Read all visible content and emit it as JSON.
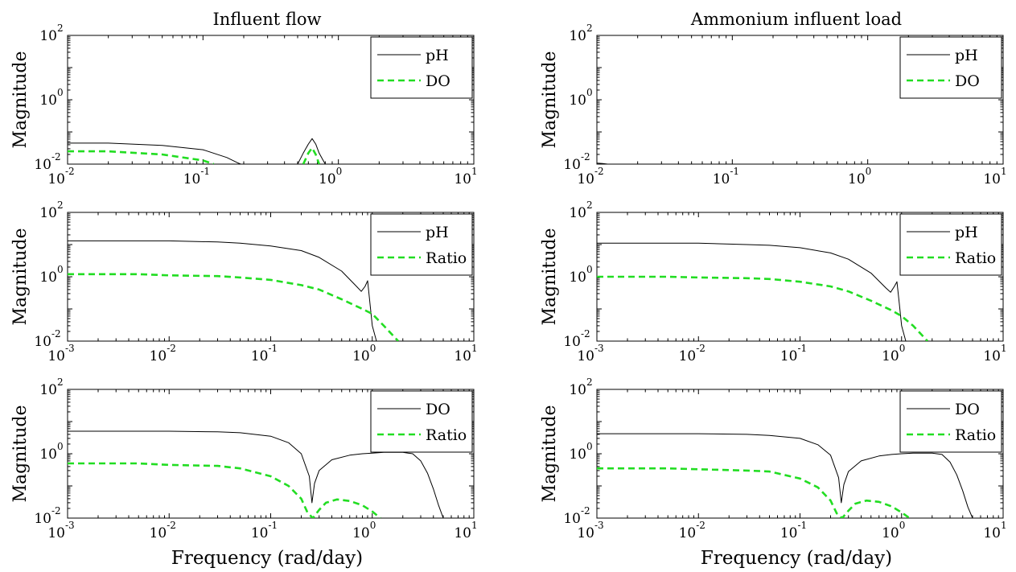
{
  "figure": {
    "columns": [
      {
        "title": "Influent flow"
      },
      {
        "title": "Ammonium influent load"
      }
    ],
    "xlabel": "Frequency (rad/day)"
  },
  "chart_data": [
    {
      "type": "line",
      "row": 0,
      "col": 0,
      "title": "Influent flow",
      "ylabel": "Magnitude",
      "xlabel": "",
      "xscale": "log",
      "yscale": "log",
      "xlim": [
        0.01,
        10
      ],
      "ylim": [
        0.01,
        100
      ],
      "xticks": [
        {
          "base": "10",
          "exp": "-2"
        },
        {
          "base": "10",
          "exp": "-1"
        },
        {
          "base": "10",
          "exp": "0"
        },
        {
          "base": "10",
          "exp": "1"
        }
      ],
      "yticks": [
        {
          "base": "10",
          "exp": "-2"
        },
        {
          "base": "10",
          "exp": "0"
        },
        {
          "base": "10",
          "exp": "2"
        }
      ],
      "legend_position": "top-right",
      "series": [
        {
          "name": "pH",
          "style": "solid",
          "color": "#000000",
          "x": [
            0.01,
            0.02,
            0.05,
            0.1,
            0.15,
            0.18,
            0.19
          ],
          "y": [
            0.045,
            0.045,
            0.038,
            0.028,
            0.016,
            0.011,
            0.01
          ]
        },
        {
          "name": "pH",
          "style": "solid",
          "color": "#000000",
          "legend": false,
          "x": [
            0.5,
            0.55,
            0.6,
            0.64,
            0.68,
            0.72,
            0.78,
            0.8
          ],
          "y": [
            0.01,
            0.022,
            0.042,
            0.062,
            0.042,
            0.022,
            0.012,
            0.01
          ]
        },
        {
          "name": "DO",
          "style": "dashed",
          "color": "#22dd22",
          "x": [
            0.01,
            0.02,
            0.05,
            0.1,
            0.12
          ],
          "y": [
            0.025,
            0.025,
            0.02,
            0.013,
            0.01
          ]
        },
        {
          "name": "DO",
          "style": "dashed",
          "color": "#22dd22",
          "legend": false,
          "x": [
            0.55,
            0.6,
            0.64,
            0.68,
            0.72
          ],
          "y": [
            0.01,
            0.022,
            0.032,
            0.02,
            0.01
          ]
        }
      ]
    },
    {
      "type": "line",
      "row": 0,
      "col": 1,
      "title": "Ammonium influent load",
      "ylabel": "Magnitude",
      "xlabel": "",
      "xscale": "log",
      "yscale": "log",
      "xlim": [
        0.01,
        10
      ],
      "ylim": [
        0.01,
        100
      ],
      "xticks": [
        {
          "base": "10",
          "exp": "-2"
        },
        {
          "base": "10",
          "exp": "-1"
        },
        {
          "base": "10",
          "exp": "0"
        },
        {
          "base": "10",
          "exp": "1"
        }
      ],
      "yticks": [
        {
          "base": "10",
          "exp": "-2"
        },
        {
          "base": "10",
          "exp": "0"
        },
        {
          "base": "10",
          "exp": "2"
        }
      ],
      "legend_position": "top-right",
      "series": [
        {
          "name": "pH",
          "style": "solid",
          "color": "#000000",
          "x": [
            0.01,
            0.011,
            0.012
          ],
          "y": [
            0.0108,
            0.0105,
            0.01
          ]
        },
        {
          "name": "DO",
          "style": "dashed",
          "color": "#22dd22",
          "x": [],
          "y": []
        }
      ]
    },
    {
      "type": "line",
      "row": 1,
      "col": 0,
      "title": "",
      "ylabel": "Magnitude",
      "xlabel": "",
      "xscale": "log",
      "yscale": "log",
      "xlim": [
        0.001,
        10
      ],
      "ylim": [
        0.01,
        100
      ],
      "xticks": [
        {
          "base": "10",
          "exp": "-3"
        },
        {
          "base": "10",
          "exp": "-2"
        },
        {
          "base": "10",
          "exp": "-1"
        },
        {
          "base": "10",
          "exp": "0"
        },
        {
          "base": "10",
          "exp": "1"
        }
      ],
      "yticks": [
        {
          "base": "10",
          "exp": "-2"
        },
        {
          "base": "10",
          "exp": "0"
        },
        {
          "base": "10",
          "exp": "2"
        }
      ],
      "legend_position": "top-right",
      "series": [
        {
          "name": "pH",
          "style": "solid",
          "color": "#000000",
          "x": [
            0.001,
            0.01,
            0.03,
            0.05,
            0.1,
            0.2,
            0.3,
            0.5,
            0.7,
            0.78,
            0.85,
            0.9,
            0.95,
            1.0,
            1.1
          ],
          "y": [
            13,
            13,
            12,
            11,
            9,
            6.5,
            4,
            1.5,
            0.5,
            0.35,
            0.5,
            0.75,
            0.15,
            0.03,
            0.01
          ]
        },
        {
          "name": "Ratio",
          "style": "dashed",
          "color": "#22dd22",
          "x": [
            0.001,
            0.005,
            0.01,
            0.03,
            0.05,
            0.1,
            0.2,
            0.3,
            0.5,
            0.8,
            1.0,
            1.3,
            1.6,
            1.8
          ],
          "y": [
            1.2,
            1.2,
            1.1,
            1.05,
            0.95,
            0.8,
            0.55,
            0.4,
            0.2,
            0.1,
            0.07,
            0.03,
            0.015,
            0.01
          ]
        }
      ]
    },
    {
      "type": "line",
      "row": 1,
      "col": 1,
      "title": "",
      "ylabel": "Magnitude",
      "xlabel": "",
      "xscale": "log",
      "yscale": "log",
      "xlim": [
        0.001,
        10
      ],
      "ylim": [
        0.01,
        100
      ],
      "xticks": [
        {
          "base": "10",
          "exp": "-3"
        },
        {
          "base": "10",
          "exp": "-2"
        },
        {
          "base": "10",
          "exp": "-1"
        },
        {
          "base": "10",
          "exp": "0"
        },
        {
          "base": "10",
          "exp": "1"
        }
      ],
      "yticks": [
        {
          "base": "10",
          "exp": "-2"
        },
        {
          "base": "10",
          "exp": "0"
        },
        {
          "base": "10",
          "exp": "2"
        }
      ],
      "legend_position": "top-right",
      "series": [
        {
          "name": "pH",
          "style": "solid",
          "color": "#000000",
          "x": [
            0.001,
            0.01,
            0.03,
            0.05,
            0.1,
            0.2,
            0.3,
            0.5,
            0.7,
            0.78,
            0.85,
            0.9,
            0.95,
            1.0,
            1.1
          ],
          "y": [
            11,
            11,
            10,
            9.5,
            8,
            5.5,
            3.5,
            1.3,
            0.45,
            0.33,
            0.5,
            0.7,
            0.15,
            0.03,
            0.01
          ]
        },
        {
          "name": "Ratio",
          "style": "dashed",
          "color": "#22dd22",
          "x": [
            0.001,
            0.005,
            0.01,
            0.03,
            0.05,
            0.1,
            0.2,
            0.3,
            0.5,
            0.8,
            1.0,
            1.3,
            1.6,
            1.8
          ],
          "y": [
            1.0,
            1.0,
            0.95,
            0.9,
            0.85,
            0.7,
            0.5,
            0.35,
            0.18,
            0.09,
            0.06,
            0.03,
            0.015,
            0.01
          ]
        }
      ]
    },
    {
      "type": "line",
      "row": 2,
      "col": 0,
      "title": "",
      "ylabel": "Magnitude",
      "xlabel": "Frequency (rad/day)",
      "xscale": "log",
      "yscale": "log",
      "xlim": [
        0.001,
        10
      ],
      "ylim": [
        0.01,
        100
      ],
      "xticks": [
        {
          "base": "10",
          "exp": "-3"
        },
        {
          "base": "10",
          "exp": "-2"
        },
        {
          "base": "10",
          "exp": "-1"
        },
        {
          "base": "10",
          "exp": "0"
        },
        {
          "base": "10",
          "exp": "1"
        }
      ],
      "yticks": [
        {
          "base": "10",
          "exp": "-2"
        },
        {
          "base": "10",
          "exp": "0"
        },
        {
          "base": "10",
          "exp": "2"
        }
      ],
      "legend_position": "top-right",
      "series": [
        {
          "name": "DO",
          "style": "solid",
          "color": "#000000",
          "x": [
            0.001,
            0.01,
            0.03,
            0.05,
            0.1,
            0.15,
            0.2,
            0.24,
            0.255,
            0.27,
            0.3,
            0.4,
            0.6,
            0.8,
            1.0,
            1.3,
            2.0,
            2.5,
            3.0,
            3.5,
            4.0,
            4.5,
            5.0
          ],
          "y": [
            5,
            5,
            4.8,
            4.5,
            3.5,
            2.2,
            1.0,
            0.2,
            0.03,
            0.12,
            0.3,
            0.65,
            0.9,
            1.0,
            1.05,
            1.1,
            1.1,
            1.0,
            0.6,
            0.25,
            0.08,
            0.025,
            0.01
          ]
        },
        {
          "name": "Ratio",
          "style": "dashed",
          "color": "#22dd22",
          "x": [
            0.001,
            0.005,
            0.01,
            0.03,
            0.05,
            0.1,
            0.15,
            0.2,
            0.23,
            0.26,
            0.3,
            0.35,
            0.45,
            0.6,
            0.8,
            1.0,
            1.2
          ],
          "y": [
            0.5,
            0.5,
            0.45,
            0.42,
            0.35,
            0.2,
            0.1,
            0.04,
            0.015,
            0.01,
            0.018,
            0.03,
            0.038,
            0.034,
            0.025,
            0.016,
            0.01
          ]
        }
      ]
    },
    {
      "type": "line",
      "row": 2,
      "col": 1,
      "title": "",
      "ylabel": "Magnitude",
      "xlabel": "Frequency (rad/day)",
      "xscale": "log",
      "yscale": "log",
      "xlim": [
        0.001,
        10
      ],
      "ylim": [
        0.01,
        100
      ],
      "xticks": [
        {
          "base": "10",
          "exp": "-3"
        },
        {
          "base": "10",
          "exp": "-2"
        },
        {
          "base": "10",
          "exp": "-1"
        },
        {
          "base": "10",
          "exp": "0"
        },
        {
          "base": "10",
          "exp": "1"
        }
      ],
      "yticks": [
        {
          "base": "10",
          "exp": "-2"
        },
        {
          "base": "10",
          "exp": "0"
        },
        {
          "base": "10",
          "exp": "2"
        }
      ],
      "legend_position": "top-right",
      "series": [
        {
          "name": "DO",
          "style": "solid",
          "color": "#000000",
          "x": [
            0.001,
            0.01,
            0.03,
            0.05,
            0.1,
            0.15,
            0.2,
            0.24,
            0.255,
            0.27,
            0.3,
            0.4,
            0.6,
            0.8,
            1.0,
            1.3,
            2.0,
            2.5,
            3.0,
            3.5,
            4.0,
            4.5,
            5.0
          ],
          "y": [
            4.2,
            4.2,
            4.0,
            3.7,
            3.0,
            1.9,
            0.9,
            0.18,
            0.03,
            0.11,
            0.28,
            0.6,
            0.85,
            0.95,
            1.0,
            1.05,
            1.05,
            0.95,
            0.55,
            0.22,
            0.07,
            0.022,
            0.01
          ]
        },
        {
          "name": "Ratio",
          "style": "dashed",
          "color": "#22dd22",
          "x": [
            0.001,
            0.005,
            0.01,
            0.03,
            0.05,
            0.1,
            0.15,
            0.2,
            0.23,
            0.26,
            0.3,
            0.35,
            0.45,
            0.6,
            0.8,
            1.0,
            1.2
          ],
          "y": [
            0.35,
            0.35,
            0.33,
            0.3,
            0.28,
            0.17,
            0.09,
            0.035,
            0.014,
            0.01,
            0.017,
            0.028,
            0.035,
            0.032,
            0.023,
            0.015,
            0.01
          ]
        }
      ]
    }
  ]
}
